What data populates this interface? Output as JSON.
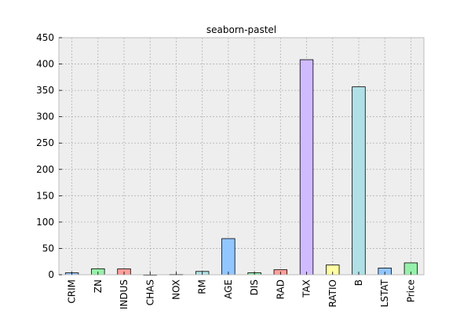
{
  "chart_data": {
    "type": "bar",
    "title": "seaborn-pastel",
    "xlabel": "",
    "ylabel": "",
    "categories": [
      "CRIM",
      "ZN",
      "INDUS",
      "CHAS",
      "NOX",
      "RM",
      "AGE",
      "DIS",
      "RAD",
      "TAX",
      "RATIO",
      "B",
      "LSTAT",
      "Price"
    ],
    "values": [
      3.6,
      11.4,
      11.1,
      0.07,
      0.55,
      6.3,
      68.6,
      3.8,
      9.5,
      408.2,
      18.5,
      356.7,
      12.7,
      22.5
    ],
    "ylim": [
      0,
      450
    ],
    "yticks": [
      0,
      50,
      100,
      150,
      200,
      250,
      300,
      350,
      400,
      450
    ],
    "grid": true,
    "legend": "none",
    "colors": [
      "#92c6ff",
      "#97f0aa",
      "#ff9f9a",
      "#d0bbff",
      "#fffea3",
      "#b0e0e6"
    ],
    "background": "#eeeeee"
  }
}
